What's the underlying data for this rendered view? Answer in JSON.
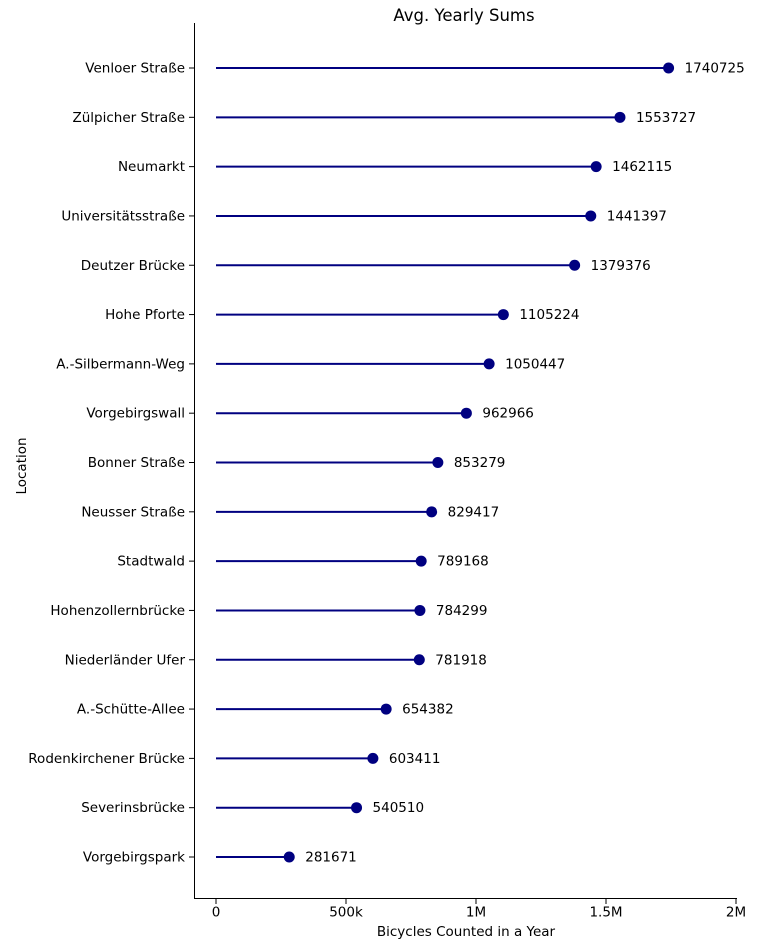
{
  "figure": {
    "background": "#ffffff",
    "text_color": "#000000"
  },
  "chart_data": {
    "type": "lollipop",
    "orientation": "horizontal",
    "title": "Avg. Yearly Sums",
    "xlabel": "Bicycles Counted in a Year",
    "ylabel": "Location",
    "categories": [
      "Venloer Straße",
      "Zülpicher Straße",
      "Neumarkt",
      "Universitätsstraße",
      "Deutzer Brücke",
      "Hohe Pforte",
      "A.-Silbermann-Weg",
      "Vorgebirgswall",
      "Bonner Straße",
      "Neusser Straße",
      "Stadtwald",
      "Hohenzollernbrücke",
      "Niederländer Ufer",
      "A.-Schütte-Allee",
      "Rodenkirchener Brücke",
      "Severinsbrücke",
      "Vorgebirgspark"
    ],
    "values": [
      1740725,
      1553727,
      1462115,
      1441397,
      1379376,
      1105224,
      1050447,
      962966,
      853279,
      829417,
      789168,
      784299,
      781918,
      654382,
      603411,
      540510,
      281671
    ],
    "value_labels": [
      "1740725",
      "1553727",
      "1462115",
      "1441397",
      "1379376",
      "1105224",
      "1050447",
      "962966",
      "853279",
      "829417",
      "789168",
      "784299",
      "781918",
      "654382",
      "603411",
      "540510",
      "281671"
    ],
    "x_ticks": [
      {
        "value": 0,
        "label": "0"
      },
      {
        "value": 500000,
        "label": "500k"
      },
      {
        "value": 1000000,
        "label": "1M"
      },
      {
        "value": 1500000,
        "label": "1.5M"
      },
      {
        "value": 2000000,
        "label": "2M"
      }
    ],
    "xlim": [
      -85000,
      2004000
    ],
    "grid": false,
    "legend": null,
    "accent_color": "#000080",
    "marker": "circle"
  }
}
